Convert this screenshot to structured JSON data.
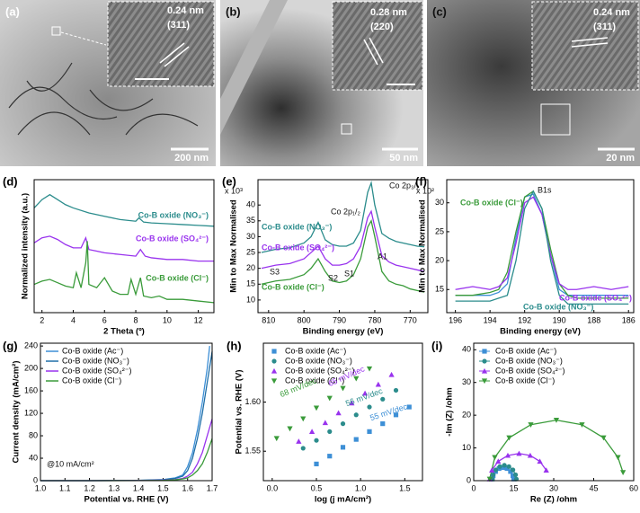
{
  "images": [
    {
      "label": "(a)",
      "spacing": "0.24 nm",
      "plane": "(311)",
      "scale_bar": "200 nm"
    },
    {
      "label": "(b)",
      "spacing": "0.28 nm",
      "plane": "(220)",
      "scale_bar": "50 nm"
    },
    {
      "label": "(c)",
      "spacing": "0.24 nm",
      "plane": "(311)",
      "scale_bar": "20 nm"
    }
  ],
  "chart_data": [
    {
      "type": "line",
      "label": "(d)",
      "x_label": "2 Theta (º)",
      "y_label": "Normalized intensity (a.u.)",
      "xlim": [
        1.5,
        13
      ],
      "ylim": [
        0.5,
        8.5
      ],
      "xticks": [
        2,
        4,
        6,
        8,
        10,
        12
      ],
      "series_labels": true,
      "series": [
        {
          "name": "Co-B oxide (NO₃⁻)",
          "color": "#2b8c8c",
          "x": [
            1.5,
            2,
            2.5,
            3,
            3.5,
            4,
            5,
            6,
            7,
            8,
            8.2,
            8.5,
            9,
            10,
            11,
            12,
            13
          ],
          "values": [
            6.8,
            7.3,
            7.6,
            7.3,
            7.0,
            6.8,
            6.5,
            6.3,
            6.1,
            6.0,
            6.2,
            5.95,
            5.9,
            5.85,
            5.8,
            5.75,
            5.7
          ]
        },
        {
          "name": "Co-B oxide (SO₄²⁻)",
          "color": "#9933ee",
          "x": [
            1.5,
            2,
            2.5,
            3,
            3.5,
            4,
            4.5,
            4.8,
            5,
            5.5,
            6,
            7,
            8,
            8.3,
            8.6,
            9,
            10,
            11,
            12,
            13
          ],
          "values": [
            4.7,
            5.0,
            5.1,
            4.9,
            4.6,
            4.4,
            4.4,
            5.0,
            4.3,
            4.2,
            4.1,
            4.0,
            3.9,
            4.3,
            3.9,
            3.8,
            3.7,
            3.7,
            3.6,
            3.6
          ]
        },
        {
          "name": "Co-B oxide (Cl⁻)",
          "color": "#3a9b3a",
          "x": [
            1.5,
            2,
            2.5,
            3,
            3.5,
            4,
            4.2,
            4.5,
            4.8,
            4.9,
            5,
            5.5,
            6,
            6.5,
            7,
            7.5,
            7.7,
            8,
            8.3,
            8.5,
            9,
            9.5,
            10,
            11,
            12,
            13
          ],
          "values": [
            2.2,
            2.4,
            2.5,
            2.3,
            2.1,
            2.0,
            2.9,
            2.0,
            3.5,
            4.8,
            2.2,
            2.0,
            2.6,
            1.8,
            1.6,
            1.6,
            2.5,
            1.6,
            2.6,
            1.5,
            1.4,
            1.5,
            1.3,
            1.3,
            1.2,
            1.1
          ]
        }
      ]
    },
    {
      "type": "line",
      "label": "(e)",
      "x_label": "Binding energy (eV)",
      "y_label": "Min to Max Normalised",
      "xlim": [
        813,
        765
      ],
      "ylim": [
        6,
        48
      ],
      "xticks": [
        810,
        800,
        790,
        780,
        770
      ],
      "yticks": [
        10,
        15,
        20,
        25,
        30,
        35,
        40
      ],
      "series_labels": true,
      "annotations": [
        {
          "text": "Co 2p₃/₂"
        },
        {
          "text": "Co 2p₁/₂"
        },
        {
          "text": "A1"
        },
        {
          "text": "S1"
        },
        {
          "text": "S2"
        },
        {
          "text": "S3"
        },
        {
          "text": "x 10³"
        }
      ],
      "series": [
        {
          "name": "Co-B oxide (NO₃⁻)",
          "color": "#2b8c8c",
          "x": [
            812,
            808,
            804,
            800,
            798,
            796,
            794,
            792,
            790,
            788,
            786,
            784,
            782,
            781,
            780,
            778,
            776,
            774,
            772,
            770,
            768,
            766
          ],
          "values": [
            25,
            26,
            26.5,
            28,
            30,
            34.5,
            29,
            27.5,
            27,
            27,
            28,
            32,
            44,
            47,
            40,
            31,
            29.5,
            28.5,
            28,
            27.5,
            27,
            26.8
          ]
        },
        {
          "name": "Co-B oxide (SO₄²⁻)",
          "color": "#9933ee",
          "x": [
            812,
            808,
            804,
            800,
            798,
            796,
            794,
            792,
            790,
            788,
            786,
            784,
            782,
            781,
            780,
            778,
            776,
            774,
            772,
            770,
            768,
            766
          ],
          "values": [
            20,
            21,
            21.5,
            23,
            25,
            27,
            23,
            21,
            21,
            21.5,
            23,
            27,
            36,
            38,
            33,
            24,
            22,
            21,
            20.5,
            20,
            19.5,
            19
          ]
        },
        {
          "name": "Co-B oxide (Cl⁻)",
          "color": "#3a9b3a",
          "x": [
            812,
            808,
            804,
            800,
            798,
            796,
            794,
            792,
            790,
            788,
            786,
            784,
            782,
            781,
            780,
            778,
            776,
            774,
            772,
            770,
            768,
            766
          ],
          "values": [
            15,
            16,
            16.5,
            18,
            20,
            23,
            19,
            16,
            15.5,
            16,
            18,
            23,
            33,
            35,
            30,
            19,
            16,
            15,
            14.5,
            13.5,
            13,
            12.5
          ]
        }
      ]
    },
    {
      "type": "line",
      "label": "(f)",
      "x_label": "Binding energy (eV)",
      "y_label": "Min to Max Normalised",
      "xlim": [
        196.5,
        185.7
      ],
      "ylim": [
        11,
        34
      ],
      "xticks": [
        196,
        194,
        192,
        190,
        188,
        186
      ],
      "yticks": [
        15,
        20,
        25,
        30
      ],
      "series_labels": true,
      "annotations": [
        {
          "text": "B1s"
        },
        {
          "text": "x 10²"
        }
      ],
      "series": [
        {
          "color": "#3d8fd6",
          "x": [
            196,
            195,
            194,
            193.5,
            193,
            192.5,
            192,
            191.5,
            191,
            190.5,
            190,
            189.5,
            189,
            188,
            187,
            186
          ],
          "values": [
            14,
            14,
            14,
            14.5,
            16,
            24,
            31,
            31.5,
            28,
            21,
            15,
            14,
            14,
            14,
            14,
            14
          ]
        },
        {
          "name": "Co-B oxide (Cl⁻)",
          "color": "#3a9b3a",
          "x": [
            196,
            195,
            194,
            193.5,
            193,
            192.5,
            192,
            191.5,
            191,
            190.5,
            190,
            189.5,
            189,
            188,
            187,
            186
          ],
          "values": [
            14,
            14,
            14.5,
            15,
            18,
            25,
            31,
            32,
            29,
            22,
            16,
            14,
            13.5,
            13.5,
            13.5,
            13.5
          ]
        },
        {
          "name": "Co-B oxide (SO₄²⁻)",
          "color": "#9933ee",
          "x": [
            196,
            195,
            194,
            193.5,
            193,
            192.5,
            192,
            191.5,
            191,
            190.5,
            190,
            189.5,
            189,
            188,
            187,
            186
          ],
          "values": [
            15,
            15.5,
            15,
            15.5,
            17,
            23,
            30,
            31,
            28,
            21,
            16,
            15,
            15,
            15.5,
            15,
            15.5
          ]
        },
        {
          "name": "Co-B oxide (NO₃⁻)",
          "color": "#2b8c8c",
          "x": [
            196,
            195,
            194,
            193.5,
            193,
            192.5,
            192,
            191.5,
            191,
            190.5,
            190,
            189.5,
            189,
            188,
            187,
            186
          ],
          "values": [
            13,
            13,
            13,
            13.5,
            14,
            20,
            29,
            32,
            29,
            20,
            14,
            12.5,
            12.5,
            12.5,
            12.5,
            12.5
          ]
        }
      ]
    },
    {
      "type": "line",
      "label": "(g)",
      "x_label": "Potential vs. RHE (V)",
      "y_label": "Current density (mA/cm²)",
      "xlim": [
        1.0,
        1.7
      ],
      "ylim": [
        0,
        245
      ],
      "xticks": [
        {
          "value": 1,
          "label": "1.0"
        },
        1.1,
        1.2,
        1.3,
        1.4,
        1.5,
        1.6,
        1.7
      ],
      "yticks": [
        0,
        40,
        80,
        120,
        160,
        200,
        240
      ],
      "legend": "upper left",
      "annotations": [
        {
          "text": "@10 mA/cm²"
        }
      ],
      "series": [
        {
          "name": "Co-B oxide (Ac⁻)",
          "color": "#3d8fd6",
          "x": [
            1.0,
            1.2,
            1.4,
            1.5,
            1.55,
            1.58,
            1.6,
            1.62,
            1.64,
            1.66,
            1.68,
            1.69
          ],
          "values": [
            0,
            0,
            0.5,
            2,
            5,
            10,
            25,
            50,
            90,
            140,
            200,
            240
          ]
        },
        {
          "name": "Co-B oxide (NO₃⁻)",
          "color": "#1f6fa8",
          "x": [
            1.0,
            1.2,
            1.4,
            1.5,
            1.55,
            1.58,
            1.6,
            1.62,
            1.64,
            1.66,
            1.68,
            1.7
          ],
          "values": [
            0,
            0,
            0.5,
            1.5,
            4,
            8,
            18,
            40,
            75,
            120,
            175,
            230
          ]
        },
        {
          "name": "Co-B oxide (SO₄²⁻)",
          "color": "#9933ee",
          "x": [
            1.0,
            1.2,
            1.4,
            1.5,
            1.55,
            1.58,
            1.6,
            1.62,
            1.64,
            1.66,
            1.68,
            1.7
          ],
          "values": [
            0,
            0,
            0.3,
            1,
            2,
            4,
            8,
            15,
            30,
            50,
            80,
            110
          ]
        },
        {
          "name": "Co-B oxide (Cl⁻)",
          "color": "#3a9b3a",
          "x": [
            1.0,
            1.2,
            1.4,
            1.5,
            1.55,
            1.58,
            1.6,
            1.62,
            1.64,
            1.66,
            1.68,
            1.7
          ],
          "values": [
            0,
            0,
            0.2,
            0.5,
            1.5,
            3,
            5,
            10,
            18,
            30,
            50,
            75
          ]
        }
      ]
    },
    {
      "type": "scatter",
      "label": "(h)",
      "x_label": "log (j mA/cm²)",
      "y_label": "Potential vs. RHE (V)",
      "xlim": [
        -0.1,
        1.7
      ],
      "ylim": [
        1.52,
        1.66
      ],
      "xticks": [
        {
          "value": 0,
          "label": "0.0"
        },
        0.5,
        {
          "value": 1,
          "label": "1.0"
        },
        1.5
      ],
      "yticks": [
        1.55,
        {
          "value": 1.6,
          "label": "1.60"
        }
      ],
      "legend": "upper left",
      "annotations": [
        {
          "text": "68 mV/dec",
          "color": "#3a9b3a"
        },
        {
          "text": "65 mV/dec",
          "color": "#9933ee"
        },
        {
          "text": "56 mV/dec",
          "color": "#2b8c8c"
        },
        {
          "text": "55 mV/dec",
          "color": "#3d8fd6"
        }
      ],
      "series": [
        {
          "name": "Co-B oxide (Ac⁻)",
          "color": "#3d8fd6",
          "marker": "square",
          "x": [
            0.5,
            0.65,
            0.8,
            0.95,
            1.1,
            1.25,
            1.4,
            1.55
          ],
          "values": [
            1.537,
            1.545,
            1.554,
            1.562,
            1.57,
            1.578,
            1.587,
            1.595
          ]
        },
        {
          "name": "Co-B oxide (NO₃⁻)",
          "color": "#2b8c8c",
          "marker": "circle",
          "x": [
            0.35,
            0.5,
            0.65,
            0.8,
            0.95,
            1.1,
            1.25,
            1.4
          ],
          "values": [
            1.553,
            1.561,
            1.57,
            1.578,
            1.587,
            1.595,
            1.603,
            1.612
          ]
        },
        {
          "name": "Co-B oxide (SO₄²⁻)",
          "color": "#9933ee",
          "marker": "triangle-up",
          "x": [
            0.3,
            0.45,
            0.6,
            0.75,
            0.9,
            1.05,
            1.2,
            1.35
          ],
          "values": [
            1.56,
            1.57,
            1.579,
            1.589,
            1.599,
            1.609,
            1.618,
            1.628
          ]
        },
        {
          "name": "Co-B oxide (Cl⁻)",
          "color": "#3a9b3a",
          "marker": "triangle-down",
          "x": [
            0.05,
            0.2,
            0.35,
            0.5,
            0.65,
            0.8,
            0.95,
            1.1
          ],
          "values": [
            1.563,
            1.573,
            1.583,
            1.594,
            1.604,
            1.614,
            1.624,
            1.634
          ]
        }
      ]
    },
    {
      "type": "line",
      "label": "(i)",
      "x_label": "Re (Z) /ohm",
      "y_label": "-Im (Z) /ohm",
      "xlim": [
        0,
        60
      ],
      "ylim": [
        0,
        42
      ],
      "xticks": [
        0,
        15,
        30,
        45,
        60
      ],
      "yticks": [
        0,
        10,
        20,
        30,
        40
      ],
      "legend": "upper left",
      "series": [
        {
          "name": "Co-B oxide (Ac⁻)",
          "color": "#3d8fd6",
          "marker": "square",
          "x": [
            7,
            7.3,
            8.2,
            9.5,
            11,
            12.5,
            13.8,
            14.7,
            15
          ],
          "values": [
            0.5,
            1.5,
            2.8,
            3.7,
            4,
            3.7,
            2.8,
            1.5,
            0.5
          ]
        },
        {
          "name": "Co-B oxide (NO₃⁻)",
          "color": "#2b8c8c",
          "marker": "circle",
          "x": [
            7,
            7.3,
            8.3,
            9.8,
            11.5,
            13.2,
            14.7,
            15.7,
            16
          ],
          "values": [
            0.5,
            1.8,
            3.3,
            4.3,
            4.7,
            4.3,
            3.3,
            1.8,
            0.5
          ]
        },
        {
          "name": "Co-B oxide (SO₄²⁻)",
          "color": "#9933ee",
          "marker": "triangle-up",
          "x": [
            6,
            6.8,
            9.2,
            12.8,
            17,
            21.2,
            24.8,
            27.2
          ],
          "values": [
            0.5,
            3.2,
            5.9,
            7.7,
            8.3,
            7.7,
            5.9,
            3.2
          ]
        },
        {
          "name": "Co-B oxide (Cl⁻)",
          "color": "#3a9b3a",
          "marker": "triangle-down",
          "x": [
            6,
            7.9,
            13.3,
            21.4,
            31,
            40.6,
            48.7,
            54.1,
            56
          ],
          "values": [
            0.5,
            7.1,
            13.1,
            17.1,
            18.5,
            17.1,
            13.1,
            7.1,
            2.5
          ]
        }
      ]
    }
  ]
}
